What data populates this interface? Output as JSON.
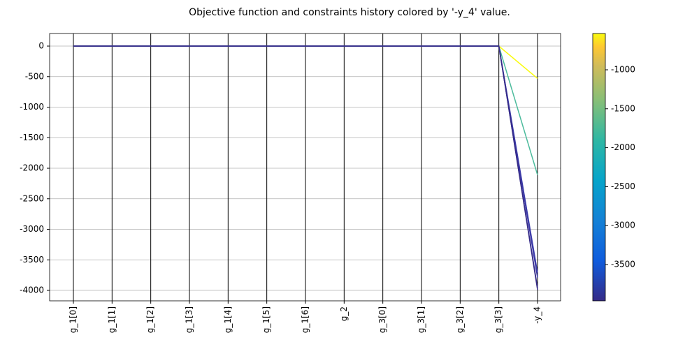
{
  "chart_data": {
    "type": "parallel",
    "title": "Objective function and constraints history colored by '-y_4' value.",
    "categories": [
      "g_1[0]",
      "g_1[1]",
      "g_1[2]",
      "g_1[3]",
      "g_1[4]",
      "g_1[5]",
      "g_1[6]",
      "g_2",
      "g_3[0]",
      "g_3[1]",
      "g_3[2]",
      "g_3[3]",
      "-y_4"
    ],
    "series": [
      {
        "color": "#f9fb0e",
        "values": [
          0,
          0,
          0,
          0,
          0,
          0,
          0,
          0,
          0,
          0,
          0,
          0,
          -530
        ]
      },
      {
        "color": "#4cbb9c",
        "values": [
          0,
          0,
          0,
          0,
          0,
          0,
          0,
          0,
          0,
          0,
          0,
          0,
          -2110
        ]
      },
      {
        "color": "#3d3dab",
        "values": [
          0,
          0,
          0,
          0,
          0,
          0,
          0,
          0,
          0,
          0,
          0,
          0,
          -3710
        ]
      },
      {
        "color": "#3a37a6",
        "values": [
          0,
          0,
          0,
          0,
          0,
          0,
          0,
          0,
          0,
          0,
          0,
          0,
          -3790
        ]
      },
      {
        "color": "#36308e",
        "values": [
          0,
          0,
          0,
          0,
          0,
          0,
          0,
          0,
          0,
          0,
          0,
          0,
          -3960
        ]
      },
      {
        "color": "#352a87",
        "values": [
          0,
          0,
          0,
          0,
          0,
          0,
          0,
          0,
          0,
          0,
          0,
          0,
          -3990
        ]
      }
    ],
    "ylim": [
      -4171,
      206
    ],
    "yticks": [
      0,
      -500,
      -1000,
      -1500,
      -2000,
      -2500,
      -3000,
      -3500,
      -4000
    ],
    "grid": true,
    "colorbar": {
      "lim": [
        -3966,
        -534
      ],
      "ticks": [
        -1000,
        -1500,
        -2000,
        -2500,
        -3000,
        -3500
      ]
    }
  }
}
